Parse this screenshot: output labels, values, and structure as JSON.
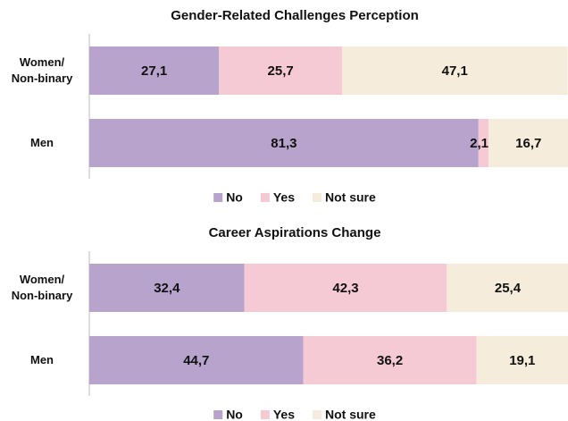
{
  "chart_data": [
    {
      "type": "bar",
      "orientation": "horizontal",
      "stacked": true,
      "title": "Gender-Related Challenges Perception",
      "categories": [
        "Women/\nNon-binary",
        "Men"
      ],
      "xlim": [
        0,
        100
      ],
      "legend": "bottom",
      "series": [
        {
          "name": "No",
          "color": "#b8a3cc",
          "values": [
            27.1,
            81.3
          ],
          "value_labels": [
            "27,1",
            "81,3"
          ]
        },
        {
          "name": "Yes",
          "color": "#f5cad5",
          "values": [
            25.7,
            2.1
          ],
          "value_labels": [
            "25,7",
            "2,1"
          ]
        },
        {
          "name": "Not sure",
          "color": "#f5ecdb",
          "values": [
            47.1,
            16.7
          ],
          "value_labels": [
            "47,1",
            "16,7"
          ]
        }
      ]
    },
    {
      "type": "bar",
      "orientation": "horizontal",
      "stacked": true,
      "title": "Career Aspirations Change",
      "categories": [
        "Women/\nNon-binary",
        "Men"
      ],
      "xlim": [
        0,
        100
      ],
      "legend": "bottom",
      "series": [
        {
          "name": "No",
          "color": "#b8a3cc",
          "values": [
            32.4,
            44.7
          ],
          "value_labels": [
            "32,4",
            "44,7"
          ]
        },
        {
          "name": "Yes",
          "color": "#f5cad5",
          "values": [
            42.3,
            36.2
          ],
          "value_labels": [
            "42,3",
            "36,2"
          ]
        },
        {
          "name": "Not sure",
          "color": "#f5ecdb",
          "values": [
            25.4,
            19.1
          ],
          "value_labels": [
            "25,4",
            "19,1"
          ]
        }
      ]
    }
  ]
}
